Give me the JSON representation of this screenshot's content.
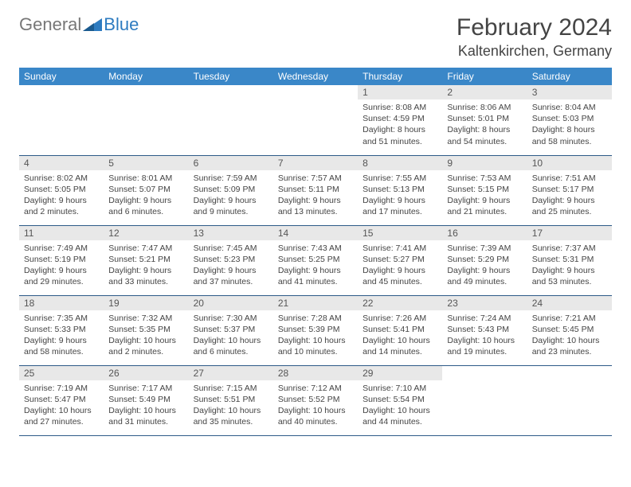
{
  "logo": {
    "text1": "General",
    "text2": "Blue"
  },
  "title": "February 2024",
  "location": "Kaltenkirchen, Germany",
  "colors": {
    "header_bg": "#3a87c8",
    "header_text": "#ffffff",
    "date_bar_bg": "#e8e8e8",
    "cell_border": "#2d5a87",
    "brand_blue": "#2d7bc0",
    "brand_gray": "#777777"
  },
  "day_names": [
    "Sunday",
    "Monday",
    "Tuesday",
    "Wednesday",
    "Thursday",
    "Friday",
    "Saturday"
  ],
  "weeks": [
    [
      null,
      null,
      null,
      null,
      {
        "d": "1",
        "sr": "8:08 AM",
        "ss": "4:59 PM",
        "dl": "8 hours and 51 minutes."
      },
      {
        "d": "2",
        "sr": "8:06 AM",
        "ss": "5:01 PM",
        "dl": "8 hours and 54 minutes."
      },
      {
        "d": "3",
        "sr": "8:04 AM",
        "ss": "5:03 PM",
        "dl": "8 hours and 58 minutes."
      }
    ],
    [
      {
        "d": "4",
        "sr": "8:02 AM",
        "ss": "5:05 PM",
        "dl": "9 hours and 2 minutes."
      },
      {
        "d": "5",
        "sr": "8:01 AM",
        "ss": "5:07 PM",
        "dl": "9 hours and 6 minutes."
      },
      {
        "d": "6",
        "sr": "7:59 AM",
        "ss": "5:09 PM",
        "dl": "9 hours and 9 minutes."
      },
      {
        "d": "7",
        "sr": "7:57 AM",
        "ss": "5:11 PM",
        "dl": "9 hours and 13 minutes."
      },
      {
        "d": "8",
        "sr": "7:55 AM",
        "ss": "5:13 PM",
        "dl": "9 hours and 17 minutes."
      },
      {
        "d": "9",
        "sr": "7:53 AM",
        "ss": "5:15 PM",
        "dl": "9 hours and 21 minutes."
      },
      {
        "d": "10",
        "sr": "7:51 AM",
        "ss": "5:17 PM",
        "dl": "9 hours and 25 minutes."
      }
    ],
    [
      {
        "d": "11",
        "sr": "7:49 AM",
        "ss": "5:19 PM",
        "dl": "9 hours and 29 minutes."
      },
      {
        "d": "12",
        "sr": "7:47 AM",
        "ss": "5:21 PM",
        "dl": "9 hours and 33 minutes."
      },
      {
        "d": "13",
        "sr": "7:45 AM",
        "ss": "5:23 PM",
        "dl": "9 hours and 37 minutes."
      },
      {
        "d": "14",
        "sr": "7:43 AM",
        "ss": "5:25 PM",
        "dl": "9 hours and 41 minutes."
      },
      {
        "d": "15",
        "sr": "7:41 AM",
        "ss": "5:27 PM",
        "dl": "9 hours and 45 minutes."
      },
      {
        "d": "16",
        "sr": "7:39 AM",
        "ss": "5:29 PM",
        "dl": "9 hours and 49 minutes."
      },
      {
        "d": "17",
        "sr": "7:37 AM",
        "ss": "5:31 PM",
        "dl": "9 hours and 53 minutes."
      }
    ],
    [
      {
        "d": "18",
        "sr": "7:35 AM",
        "ss": "5:33 PM",
        "dl": "9 hours and 58 minutes."
      },
      {
        "d": "19",
        "sr": "7:32 AM",
        "ss": "5:35 PM",
        "dl": "10 hours and 2 minutes."
      },
      {
        "d": "20",
        "sr": "7:30 AM",
        "ss": "5:37 PM",
        "dl": "10 hours and 6 minutes."
      },
      {
        "d": "21",
        "sr": "7:28 AM",
        "ss": "5:39 PM",
        "dl": "10 hours and 10 minutes."
      },
      {
        "d": "22",
        "sr": "7:26 AM",
        "ss": "5:41 PM",
        "dl": "10 hours and 14 minutes."
      },
      {
        "d": "23",
        "sr": "7:24 AM",
        "ss": "5:43 PM",
        "dl": "10 hours and 19 minutes."
      },
      {
        "d": "24",
        "sr": "7:21 AM",
        "ss": "5:45 PM",
        "dl": "10 hours and 23 minutes."
      }
    ],
    [
      {
        "d": "25",
        "sr": "7:19 AM",
        "ss": "5:47 PM",
        "dl": "10 hours and 27 minutes."
      },
      {
        "d": "26",
        "sr": "7:17 AM",
        "ss": "5:49 PM",
        "dl": "10 hours and 31 minutes."
      },
      {
        "d": "27",
        "sr": "7:15 AM",
        "ss": "5:51 PM",
        "dl": "10 hours and 35 minutes."
      },
      {
        "d": "28",
        "sr": "7:12 AM",
        "ss": "5:52 PM",
        "dl": "10 hours and 40 minutes."
      },
      {
        "d": "29",
        "sr": "7:10 AM",
        "ss": "5:54 PM",
        "dl": "10 hours and 44 minutes."
      },
      null,
      null
    ]
  ],
  "labels": {
    "sunrise": "Sunrise:",
    "sunset": "Sunset:",
    "daylight": "Daylight:"
  }
}
